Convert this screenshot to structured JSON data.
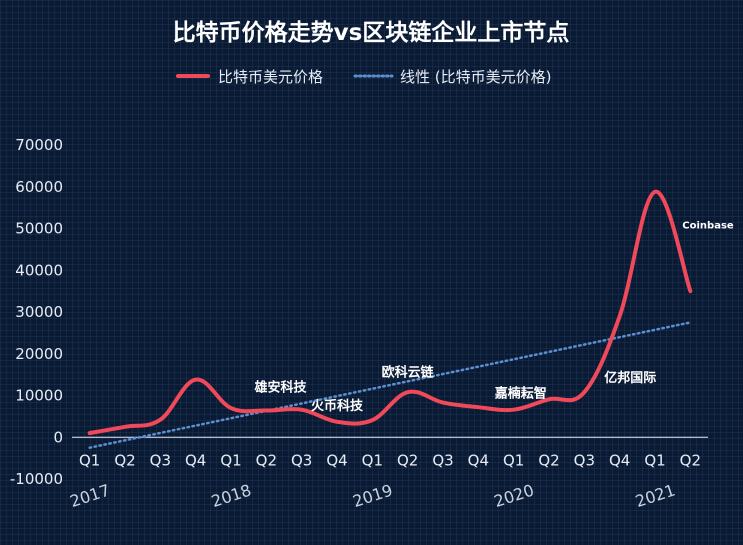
{
  "chart_data": {
    "type": "line",
    "title": "比特币价格走势vs区块链企业上市节点",
    "legend": [
      {
        "name": "比特币美元价格",
        "style": "solid",
        "color": "#f04a5a"
      },
      {
        "name": "线性 (比特币美元价格)",
        "style": "dotted",
        "color": "#5a8fd0"
      }
    ],
    "categories": [
      "Q1",
      "Q2",
      "Q3",
      "Q4",
      "Q1",
      "Q2",
      "Q3",
      "Q4",
      "Q1",
      "Q2",
      "Q3",
      "Q4",
      "Q1",
      "Q2",
      "Q3",
      "Q4",
      "Q1",
      "Q2"
    ],
    "years": [
      {
        "label": "2017",
        "index": 0
      },
      {
        "label": "2018",
        "index": 4
      },
      {
        "label": "2019",
        "index": 8
      },
      {
        "label": "2020",
        "index": 12
      },
      {
        "label": "2021",
        "index": 16
      }
    ],
    "series": [
      {
        "name": "比特币美元价格",
        "values": [
          1000,
          2500,
          4200,
          13800,
          7000,
          6400,
          6600,
          3700,
          4100,
          10800,
          8300,
          7200,
          6600,
          9100,
          10800,
          29000,
          58800,
          35000
        ]
      }
    ],
    "trendline": {
      "name": "线性 (比特币美元价格)",
      "start": -2500,
      "end": 27500
    },
    "ylim": [
      -10000,
      70000
    ],
    "yticks": [
      -10000,
      0,
      10000,
      20000,
      30000,
      40000,
      50000,
      60000,
      70000
    ],
    "xlabel": "",
    "ylabel": "",
    "annotations": [
      {
        "text": "雄安科技",
        "x": 5.4,
        "y": 11000,
        "size": "normal"
      },
      {
        "text": "火币科技",
        "x": 7.0,
        "y": 6500,
        "size": "normal"
      },
      {
        "text": "欧科云链",
        "x": 9.0,
        "y": 14500,
        "size": "normal"
      },
      {
        "text": "嘉楠耘智",
        "x": 12.2,
        "y": 9500,
        "size": "normal"
      },
      {
        "text": "亿邦国际",
        "x": 15.3,
        "y": 13200,
        "size": "normal"
      },
      {
        "text": "Coinbase",
        "x": 17.5,
        "y": 50000,
        "size": "small"
      }
    ]
  }
}
